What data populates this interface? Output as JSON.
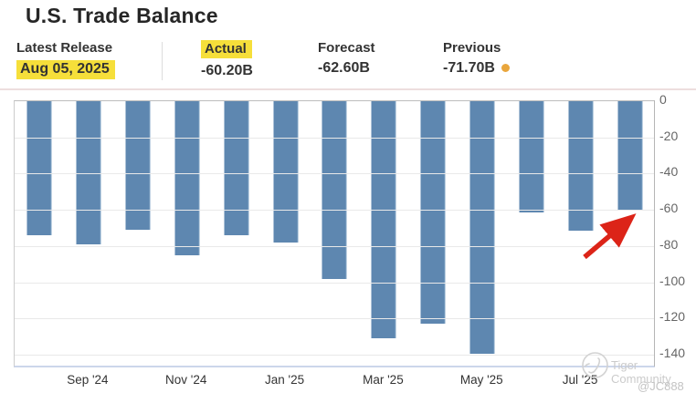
{
  "title": "U.S. Trade Balance",
  "stats": {
    "latest_release": {
      "label": "Latest Release",
      "value": "Aug 05, 2025"
    },
    "actual": {
      "label": "Actual",
      "value": "-60.20B"
    },
    "forecast": {
      "label": "Forecast",
      "value": "-62.60B"
    },
    "previous": {
      "label": "Previous",
      "value": "-71.70B"
    }
  },
  "colors": {
    "highlight_yellow": "#f6df3a",
    "actual_green": "#0d9e12",
    "previous_red": "#d93125",
    "previous_dot_orange": "#e9a63c",
    "bar_blue": "#5e87b0",
    "arrow_red": "#dc2418"
  },
  "watermark": {
    "brand": "Tiger Community",
    "handle": "@JC888"
  },
  "chart_data": {
    "type": "bar",
    "title": "U.S. Trade Balance",
    "values": [
      -74,
      -79,
      -71,
      -85,
      -74,
      -78,
      -98,
      -131,
      -123,
      -139.5,
      -61.5,
      -71.7,
      -60.2
    ],
    "x_tick_labels": [
      "Sep '24",
      "Nov '24",
      "Jan '25",
      "Mar '25",
      "May '25",
      "Jul '25"
    ],
    "x_tick_bar_indexes": [
      1,
      3,
      5,
      7,
      9,
      11
    ],
    "y_tick_values": [
      0,
      -20,
      -40,
      -60,
      -80,
      -100,
      -120,
      -140
    ],
    "ylim": [
      -146,
      0
    ],
    "grid": true,
    "y_axis_side": "right",
    "bar_color": "#5e87b0",
    "legend": "none",
    "annotation": {
      "type": "arrow",
      "color": "#dc2418",
      "points_to": "last bar, value -60.2"
    }
  }
}
